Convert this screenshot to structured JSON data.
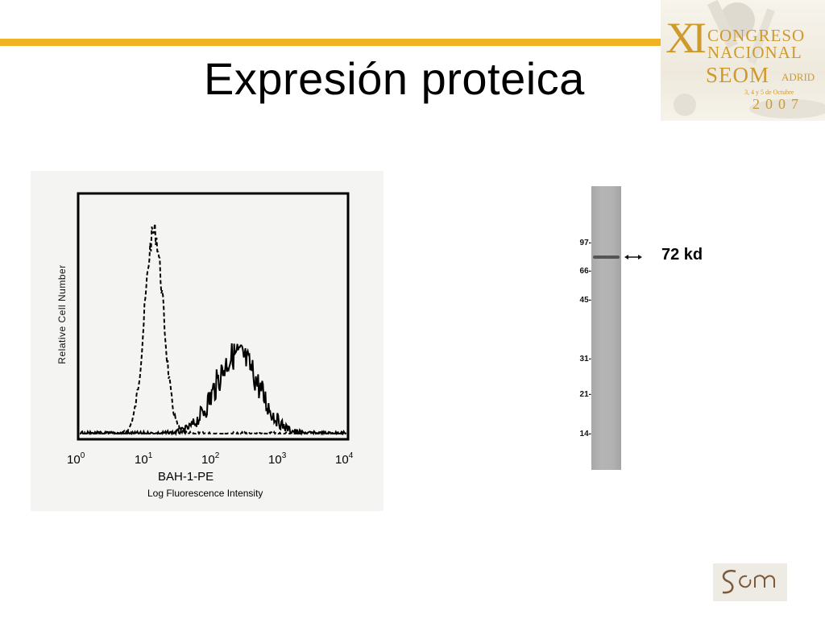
{
  "slide": {
    "title": "Expresión proteica",
    "accent_color": "#f0b323",
    "logo_gold": "#cf9a2c"
  },
  "congress_logo": {
    "numeral": "XI",
    "line1": "CONGRESO",
    "line2": "NACIONAL",
    "org": "SEOM",
    "city": "ADRID",
    "dates": "3, 4 y 5 de Octubre",
    "year": "2007",
    "icon": "microscope-illustration"
  },
  "histogram": {
    "y_label": "Relative Cell Number",
    "x_label": "BAH-1-PE",
    "x_sublabel": "Log Fluorescence Intensity",
    "x_ticks": [
      {
        "base": "10",
        "exp": "0"
      },
      {
        "base": "10",
        "exp": "1"
      },
      {
        "base": "10",
        "exp": "2"
      },
      {
        "base": "10",
        "exp": "3"
      },
      {
        "base": "10",
        "exp": "4"
      }
    ],
    "x_scale": "log",
    "x_range": [
      1,
      10000
    ],
    "series": [
      {
        "style": "dashed",
        "peak_x": 13,
        "peak_height": 0.84
      },
      {
        "style": "solid",
        "peak_x": 230,
        "peak_height": 0.33
      }
    ]
  },
  "western_blot": {
    "markers": [
      "97-",
      "66-",
      "45-",
      "31-",
      "21-",
      "14-"
    ],
    "band_label": "72 kd",
    "arrow_icon": "double-arrow-icon"
  },
  "society_logo": {
    "icon": "seom-monogram-logo"
  }
}
